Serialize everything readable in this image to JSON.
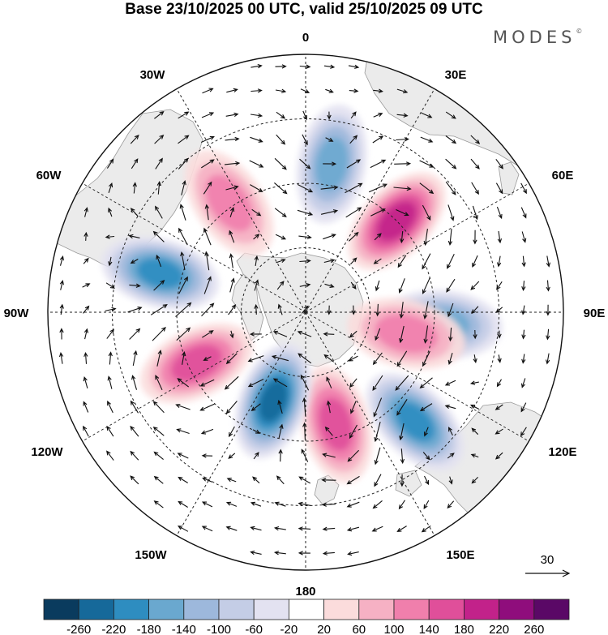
{
  "title": "Base 23/10/2025 00 UTC, valid 25/10/2025 09 UTC",
  "brand": "MODES",
  "brand_mark": "©",
  "longitude_labels": {
    "lon_0": "0",
    "lon_30e": "30E",
    "lon_60e": "60E",
    "lon_90e": "90E",
    "lon_120e": "120E",
    "lon_150e": "150E",
    "lon_180": "180",
    "lon_150w": "150W",
    "lon_120w": "120W",
    "lon_90w": "90W",
    "lon_60w": "60W",
    "lon_30w": "30W"
  },
  "reference_vector": {
    "value": 30,
    "label": "30"
  },
  "colorbar": {
    "ticks": [
      "-260",
      "-220",
      "-180",
      "-140",
      "-100",
      "-60",
      "-20",
      "20",
      "60",
      "100",
      "140",
      "180",
      "220",
      "260"
    ],
    "colors": [
      "#0a3b5e",
      "#16699a",
      "#2e8dc0",
      "#6aa8cf",
      "#9db8dc",
      "#c4cde6",
      "#e3e2f1",
      "#ffffff",
      "#fbdcdc",
      "#f6b1c4",
      "#f07fac",
      "#e04f9a",
      "#c2228a",
      "#8f0d7c",
      "#5a0866"
    ]
  },
  "chart_data": {
    "type": "heatmap",
    "projection": "south polar stereographic",
    "field": "anomaly (filled) with wind vectors",
    "title": "Base 23/10/2025 00 UTC, valid 25/10/2025 09 UTC",
    "longitudes": [
      "0",
      "30E",
      "60E",
      "90E",
      "120E",
      "150E",
      "180",
      "150W",
      "120W",
      "90W",
      "60W",
      "30W"
    ],
    "levels": [
      -260,
      -220,
      -180,
      -140,
      -100,
      -60,
      -20,
      20,
      60,
      100,
      140,
      180,
      220,
      260
    ],
    "anomaly_centers": [
      {
        "lon": 10,
        "colat": 35,
        "value": -140
      },
      {
        "lon": 45,
        "colat": 30,
        "value": 180
      },
      {
        "lon": 95,
        "colat": 32,
        "value": -160
      },
      {
        "lon": 135,
        "colat": 36,
        "value": -180
      },
      {
        "lon": 165,
        "colat": 27,
        "value": 160
      },
      {
        "lon": -160,
        "colat": 22,
        "value": -220
      },
      {
        "lon": -115,
        "colat": 28,
        "value": 160
      },
      {
        "lon": -75,
        "colat": 35,
        "value": -200
      },
      {
        "lon": -35,
        "colat": 31,
        "value": 120
      },
      {
        "lon": 102,
        "colat": 24,
        "value": 120
      }
    ],
    "reference_vector": 30
  }
}
